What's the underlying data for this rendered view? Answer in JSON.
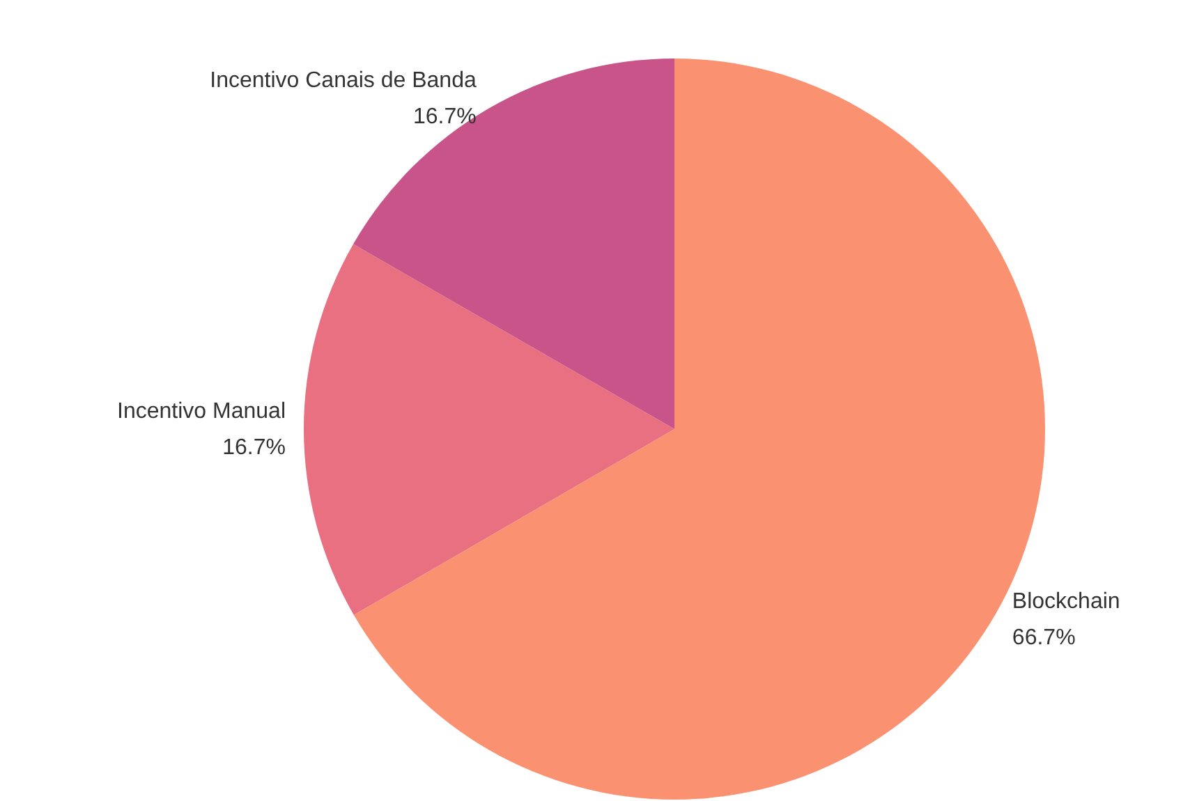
{
  "chart_data": {
    "type": "pie",
    "categories": [
      "Blockchain",
      "Incentivo Manual",
      "Incentivo Canais de Banda"
    ],
    "values": [
      66.7,
      16.7,
      16.7
    ],
    "value_labels": [
      "66.7%",
      "16.7%",
      "16.7%"
    ],
    "colors": [
      "#fa9272",
      "#e97080",
      "#c8548a"
    ],
    "legend": false
  }
}
